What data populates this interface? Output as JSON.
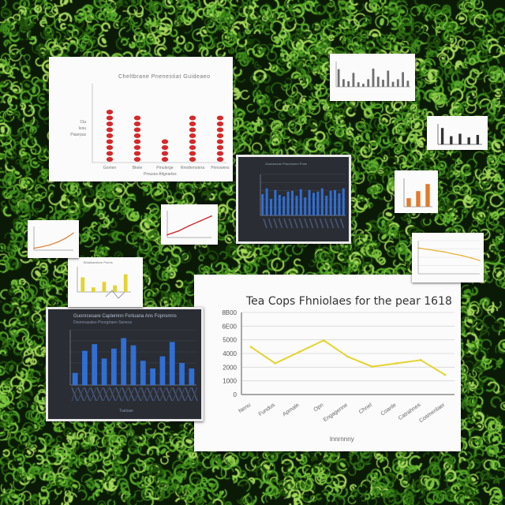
{
  "background": {
    "base_color": "#0b1a06",
    "leaf_colors": [
      "#1f4d0c",
      "#2f6e13",
      "#3f8a1c",
      "#57a82a",
      "#7cc43e",
      "#a6d85c"
    ]
  },
  "colors": {
    "red": "#d42a2a",
    "blue": "#2f6fd6",
    "yellow": "#e6d32f",
    "orange": "#e07a2c",
    "grid": "#d8d8d8",
    "axis": "#555555"
  },
  "chart_data": [
    {
      "id": "main-line-chart",
      "type": "line",
      "title": "Tea Cops Fhniolaes for the pear 1618",
      "xlabel": "lnnrnnny",
      "ylabel": "",
      "y_tick_labels": [
        "8B00",
        "6E00",
        "5000",
        "4000",
        "2000",
        "1000",
        "0"
      ],
      "x_tick_labels": [
        "Nenu",
        "Fundus",
        "Apmale",
        "Opn",
        "Engagenne",
        "Chnel",
        "Coanle",
        "Catrahnes",
        "Cosmenlaer"
      ],
      "ylim": [
        0,
        100
      ],
      "values": [
        58,
        38,
        52,
        66,
        46,
        34,
        38,
        42,
        24
      ],
      "color": "#e6d32f",
      "grid": true,
      "legend": "none"
    },
    {
      "id": "red-dot-chart",
      "type": "bar",
      "title": "Cheltbrane Pnenestiat Guideaeo",
      "xlabel": "Pmuses Altgnartes",
      "ylabel": "",
      "y_tick_labels": [
        "Cla",
        "Iesu",
        "Piaorpus"
      ],
      "categories": [
        "Gomen",
        "Bkeie",
        "Pmulerge",
        "Rmofernstera",
        "Pnnowens"
      ],
      "values": [
        68,
        58,
        30,
        58,
        58
      ],
      "ylim": [
        0,
        100
      ],
      "color": "#d42a2a"
    },
    {
      "id": "blue-bar-chart-center",
      "type": "bar",
      "title": "Guansrcrae Pracrtnumn Pnee",
      "xlabel": "",
      "ylabel": "",
      "values": [
        52,
        66,
        40,
        62,
        50,
        46,
        58,
        60,
        48,
        64,
        44,
        62,
        55,
        58,
        66,
        48,
        60,
        62,
        54,
        66
      ],
      "ylim": [
        0,
        100
      ],
      "color": "#2f6fd6"
    },
    {
      "id": "blue-bar-chart-left",
      "type": "bar",
      "title": "Guonrcesare Caplemnn Fortuana Ans Fopnsmns",
      "subtitle": "Dnomrasalee Pnorgrtaen Seneos",
      "xlabel": "Tuetsan",
      "ylabel": "",
      "values": [
        22,
        62,
        74,
        48,
        66,
        85,
        72,
        44,
        30,
        52,
        78,
        40,
        30
      ],
      "ylim": [
        0,
        100
      ],
      "color": "#2f6fd6"
    },
    {
      "id": "yellow-mini-bar-chart",
      "type": "bar",
      "title": "Bhlalbaelecre Pnens",
      "xlabel": "",
      "ylabel": "",
      "values": [
        58,
        18,
        40,
        26,
        70
      ],
      "ylim": [
        0,
        100
      ],
      "color": "#e6d32f"
    },
    {
      "id": "grey-bar-chart-top",
      "type": "bar",
      "title": "",
      "xlabel": "",
      "ylabel": "",
      "values": [
        70,
        30,
        22,
        55,
        18,
        12,
        30,
        72,
        40,
        28,
        64,
        20,
        30,
        58,
        24
      ],
      "ylim": [
        0,
        100
      ],
      "color": "#707070"
    },
    {
      "id": "grey-bar-chart-right",
      "type": "bar",
      "title": "",
      "xlabel": "",
      "ylabel": "",
      "values": [
        80,
        40,
        52,
        34,
        46
      ],
      "ylim": [
        0,
        100
      ],
      "color": "#333333"
    },
    {
      "id": "orange-mini-bar-chart",
      "type": "bar",
      "title": "",
      "xlabel": "",
      "ylabel": "",
      "values": [
        30,
        55,
        80
      ],
      "ylim": [
        0,
        100
      ],
      "color": "#e07a2c"
    },
    {
      "id": "yellow-decline-line-chart",
      "type": "line",
      "title": "",
      "xlabel": "",
      "ylabel": "",
      "values": [
        78,
        74,
        70,
        66,
        60,
        55,
        48,
        40
      ],
      "ylim": [
        0,
        100
      ],
      "color": "#e6b02f"
    },
    {
      "id": "orange-rise-line-chart",
      "type": "line",
      "title": "",
      "xlabel": "",
      "ylabel": "",
      "values": [
        8,
        14,
        22,
        34,
        50,
        72
      ],
      "ylim": [
        0,
        100
      ],
      "color": "#e07a2c"
    },
    {
      "id": "red-rise-line-chart",
      "type": "line",
      "title": "",
      "xlabel": "",
      "ylabel": "",
      "values": [
        10,
        24,
        44,
        62,
        80
      ],
      "ylim": [
        0,
        100
      ],
      "color": "#d42a2a"
    }
  ]
}
